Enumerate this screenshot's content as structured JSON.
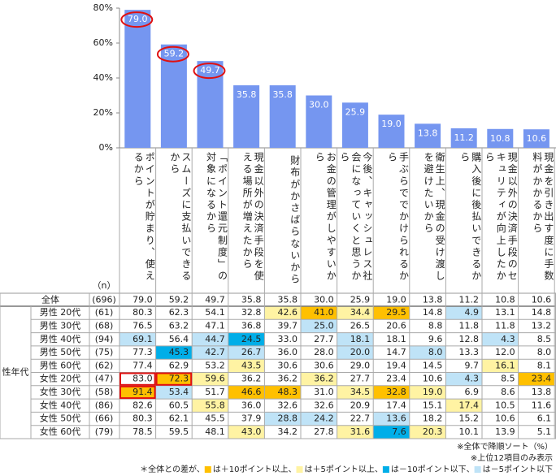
{
  "chart_data": {
    "type": "bar",
    "categories": [
      "ポイントが貯まり、使えるから",
      "スムーズに支払いできるから",
      "「ポイント還元制度」の対象になるから",
      "現金以外の決済手段を使える場所が増えたから",
      "財布がかさばらないから",
      "お金の管理がしやすいから",
      "今後、キャッシュレス社会になっていくと思うから",
      "手ぶらででかけられるから",
      "衛生上、現金の受け渡しを避けたいから",
      "購入後に後払いできるから",
      "現金以外の決済手段のセキュリティが向上したから",
      "現金を引き出す度に手数料がかかるから"
    ],
    "values": [
      79.0,
      59.2,
      49.7,
      35.8,
      35.8,
      30.0,
      25.9,
      19.0,
      13.8,
      11.2,
      10.8,
      10.6
    ],
    "value_labels": [
      "79.0",
      "59.2",
      "49.7",
      "35.8",
      "35.8",
      "30.0",
      "25.9",
      "19.0",
      "13.8",
      "11.2",
      "10.8",
      "10.6"
    ],
    "color": "#7596f0",
    "circled": [
      0,
      1,
      2
    ],
    "circle_color": "#e01010",
    "ylim": [
      0,
      80
    ],
    "yticks": [
      {
        "value": 0,
        "label": "0%"
      },
      {
        "value": 20,
        "label": "20%"
      },
      {
        "value": 40,
        "label": "40%"
      },
      {
        "value": 60,
        "label": "60%"
      },
      {
        "value": 80,
        "label": "80%"
      }
    ]
  },
  "table": {
    "n_header": "（n）",
    "total": {
      "label": "全体",
      "n": "(696)",
      "values": [
        "79.0",
        "59.2",
        "49.7",
        "35.8",
        "35.8",
        "30.0",
        "25.9",
        "19.0",
        "13.8",
        "11.2",
        "10.8",
        "10.6"
      ]
    },
    "group_label": "性年代",
    "outline_color": "#e01010",
    "rows": [
      {
        "label": "男性 20代",
        "n": "(61)",
        "values": [
          "80.3",
          "62.3",
          "54.1",
          "32.8",
          "42.6",
          "41.0",
          "34.4",
          "29.5",
          "14.8",
          "4.9",
          "13.1",
          "14.8"
        ],
        "fills": [
          null,
          null,
          null,
          null,
          "#fff3a3",
          "#ffc000",
          "#fff3a3",
          "#ffc000",
          null,
          "#bfe3f7",
          null,
          null
        ],
        "outlined": []
      },
      {
        "label": "男性 30代",
        "n": "(68)",
        "values": [
          "76.5",
          "63.2",
          "47.1",
          "36.8",
          "39.7",
          "25.0",
          "26.5",
          "20.6",
          "8.8",
          "11.8",
          "11.8",
          "13.2"
        ],
        "fills": [
          null,
          null,
          null,
          null,
          null,
          "#bfe3f7",
          null,
          null,
          null,
          null,
          null,
          null
        ],
        "outlined": []
      },
      {
        "label": "男性 40代",
        "n": "(94)",
        "values": [
          "69.1",
          "56.4",
          "44.7",
          "24.5",
          "33.0",
          "27.7",
          "18.1",
          "18.1",
          "9.6",
          "12.8",
          "4.3",
          "8.5"
        ],
        "fills": [
          "#bfe3f7",
          null,
          "#bfe3f7",
          "#00aee8",
          null,
          null,
          "#bfe3f7",
          null,
          null,
          null,
          "#bfe3f7",
          null
        ],
        "outlined": []
      },
      {
        "label": "男性 50代",
        "n": "(75)",
        "values": [
          "77.3",
          "45.3",
          "42.7",
          "26.7",
          "36.0",
          "28.0",
          "20.0",
          "14.7",
          "8.0",
          "13.3",
          "12.0",
          "8.0"
        ],
        "fills": [
          null,
          "#00aee8",
          "#bfe3f7",
          "#bfe3f7",
          null,
          null,
          "#bfe3f7",
          null,
          "#bfe3f7",
          null,
          null,
          null
        ],
        "outlined": []
      },
      {
        "label": "男性 60代",
        "n": "(62)",
        "values": [
          "77.4",
          "62.9",
          "53.2",
          "43.5",
          "30.6",
          "30.6",
          "29.0",
          "19.4",
          "14.5",
          "9.7",
          "16.1",
          "8.1"
        ],
        "fills": [
          null,
          null,
          null,
          "#fff3a3",
          null,
          null,
          null,
          null,
          null,
          null,
          "#fff3a3",
          null
        ],
        "outlined": []
      },
      {
        "label": "女性 20代",
        "n": "(47)",
        "values": [
          "83.0",
          "72.3",
          "59.6",
          "36.2",
          "36.2",
          "36.2",
          "27.7",
          "23.4",
          "10.6",
          "4.3",
          "8.5",
          "23.4"
        ],
        "fills": [
          null,
          "#ffc000",
          "#fff3a3",
          null,
          null,
          "#fff3a3",
          null,
          null,
          null,
          "#bfe3f7",
          null,
          "#ffc000"
        ],
        "outlined": [
          0,
          1
        ]
      },
      {
        "label": "女性 30代",
        "n": "(58)",
        "values": [
          "91.4",
          "53.4",
          "51.7",
          "46.6",
          "48.3",
          "31.0",
          "34.5",
          "32.8",
          "19.0",
          "6.9",
          "8.6",
          "13.8"
        ],
        "fills": [
          "#ffc000",
          "#bfe3f7",
          null,
          "#ffc000",
          "#ffc000",
          null,
          "#fff3a3",
          "#ffc000",
          "#fff3a3",
          null,
          null,
          null
        ],
        "outlined": [
          0
        ]
      },
      {
        "label": "女性 40代",
        "n": "(86)",
        "values": [
          "82.6",
          "60.5",
          "55.8",
          "36.0",
          "32.6",
          "32.6",
          "20.9",
          "17.4",
          "15.1",
          "17.4",
          "10.5",
          "11.6"
        ],
        "fills": [
          null,
          null,
          "#fff3a3",
          null,
          null,
          null,
          null,
          null,
          null,
          "#fff3a3",
          null,
          null
        ],
        "outlined": []
      },
      {
        "label": "女性 50代",
        "n": "(66)",
        "values": [
          "80.3",
          "62.1",
          "45.5",
          "37.9",
          "28.8",
          "24.2",
          "22.7",
          "13.6",
          "18.2",
          "15.2",
          "10.6",
          "6.1"
        ],
        "fills": [
          null,
          null,
          null,
          null,
          "#bfe3f7",
          "#bfe3f7",
          null,
          "#bfe3f7",
          null,
          null,
          null,
          null
        ],
        "outlined": []
      },
      {
        "label": "女性 60代",
        "n": "(79)",
        "values": [
          "78.5",
          "59.5",
          "48.1",
          "43.0",
          "34.2",
          "27.8",
          "31.6",
          "7.6",
          "20.3",
          "10.1",
          "13.9",
          "5.1"
        ],
        "fills": [
          null,
          null,
          null,
          "#fff3a3",
          null,
          null,
          "#fff3a3",
          "#00aee8",
          "#fff3a3",
          null,
          null,
          null
        ],
        "outlined": []
      }
    ]
  },
  "notes": [
    "※全体で降順ソート（%）",
    "※上位12項目のみ表示"
  ],
  "legend": {
    "lead": "＊全体との差が、",
    "items": [
      {
        "color": "#ffc000",
        "label": "は＋10ポイント以上、"
      },
      {
        "color": "#fff3a3",
        "label": "は＋5ポイント以上、"
      },
      {
        "color": "#00aee8",
        "label": "は－10ポイント以下、"
      },
      {
        "color": "#bfe3f7",
        "label": "は－5ポイント以下"
      }
    ]
  }
}
